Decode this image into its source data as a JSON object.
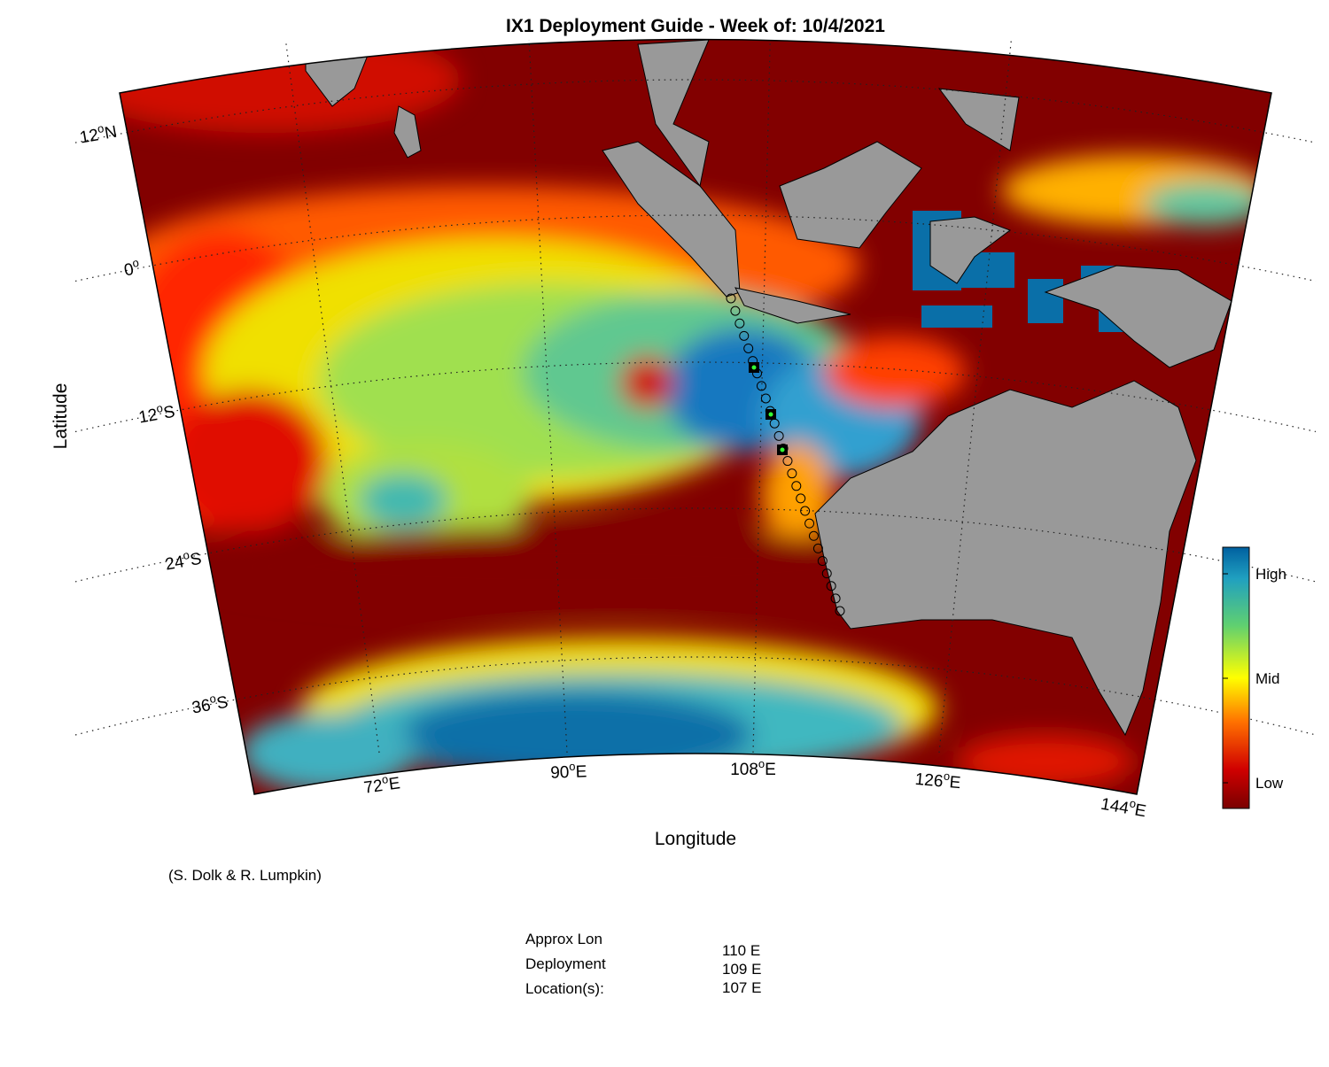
{
  "title": "IX1 Deployment Guide - Week of: 10/4/2021",
  "axes": {
    "x_label": "Longitude",
    "y_label": "Latitude",
    "lat_ticks": [
      {
        "deg": "12",
        "sup": "o",
        "hemi": "N"
      },
      {
        "deg": "0",
        "sup": "o"
      },
      {
        "deg": "12",
        "sup": "o",
        "hemi": "S"
      },
      {
        "deg": "24",
        "sup": "o",
        "hemi": "S"
      },
      {
        "deg": "36",
        "sup": "o",
        "hemi": "S"
      }
    ],
    "lon_ticks": [
      {
        "deg": "72",
        "sup": "o",
        "hemi": "E"
      },
      {
        "deg": "90",
        "sup": "o",
        "hemi": "E"
      },
      {
        "deg": "108",
        "sup": "o",
        "hemi": "E"
      },
      {
        "deg": "126",
        "sup": "o",
        "hemi": "E"
      },
      {
        "deg": "144",
        "sup": "o",
        "hemi": "E"
      }
    ]
  },
  "colorbar": {
    "labels": [
      "High",
      "Mid",
      "Low"
    ]
  },
  "credit": "(S. Dolk & R. Lumpkin)",
  "deployment": {
    "label_lines": [
      "Approx Lon",
      "Deployment",
      "Location(s):"
    ],
    "locations": [
      "110 E",
      "109 E",
      "107 E"
    ]
  }
}
